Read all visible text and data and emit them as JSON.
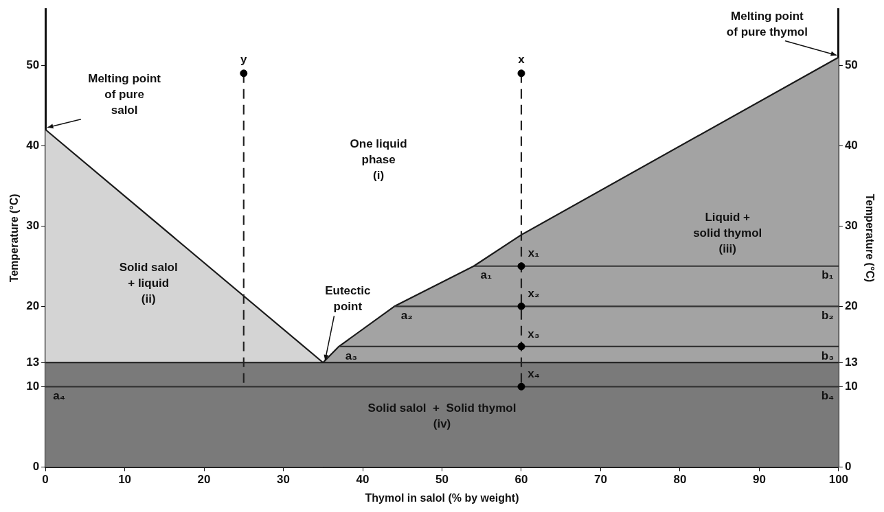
{
  "chart_data": {
    "type": "line",
    "xlabel": "Thymol in salol (% by weight)",
    "ylabel": "Temperature (°C)",
    "y2label": "Temperature (°C)",
    "xlim": [
      0,
      100
    ],
    "xticks": [
      0,
      10,
      20,
      30,
      40,
      50,
      60,
      70,
      80,
      90,
      100
    ],
    "ylim": [
      0,
      57
    ],
    "yticks": [
      0,
      10,
      13,
      20,
      30,
      40,
      50
    ],
    "y2lim": [
      0,
      57
    ],
    "y2ticks": [
      0,
      10,
      13,
      20,
      30,
      40,
      50
    ],
    "grid": false,
    "legend": false,
    "series": [
      {
        "type": "scatter",
        "color": "#000000",
        "marker": "circle",
        "x": [
          25,
          60,
          60,
          60,
          60,
          60
        ],
        "values": [
          49,
          49,
          25,
          20,
          15,
          10
        ]
      },
      {
        "color": "#222222",
        "line_style": "dashed",
        "x": [
          25,
          25
        ],
        "values": [
          49,
          10
        ]
      },
      {
        "color": "#222222",
        "line_style": "dashed",
        "x": [
          60,
          60
        ],
        "values": [
          49,
          10
        ]
      },
      {
        "color": "#333333",
        "x": [
          0,
          100
        ],
        "values": [
          10,
          10
        ]
      },
      {
        "color": "#333333",
        "x": [
          37,
          100
        ],
        "values": [
          15,
          15
        ]
      },
      {
        "color": "#333333",
        "x": [
          44,
          100
        ],
        "values": [
          20,
          20
        ]
      },
      {
        "color": "#333333",
        "x": [
          54,
          100
        ],
        "values": [
          25,
          25
        ]
      },
      {
        "type": "area",
        "color": "#7a7a7a",
        "x": [
          0,
          100
        ],
        "values": [
          13,
          13
        ]
      },
      {
        "type": "area",
        "color": "#a3a3a3",
        "x": [
          35,
          37,
          44,
          54,
          60,
          100
        ],
        "values": [
          13,
          15,
          20,
          25,
          28.9,
          51
        ]
      },
      {
        "type": "area",
        "color": "#d4d4d4",
        "x": [
          0,
          35
        ],
        "values": [
          42,
          13
        ]
      }
    ],
    "annotations": [
      {
        "text": "Melting point\nof pure\nsalol",
        "x": 0,
        "y": 42
      },
      {
        "text": "Melting point\nof pure thymol",
        "x": 100,
        "y": 51
      },
      {
        "text": "Eutectic\npoint",
        "x": 35,
        "y": 13
      },
      {
        "text": "y",
        "x": 25,
        "y": 49
      },
      {
        "text": "x",
        "x": 60,
        "y": 49
      },
      {
        "text": "x₁",
        "x": 60,
        "y": 25
      },
      {
        "text": "x₂",
        "x": 60,
        "y": 20
      },
      {
        "text": "x₃",
        "x": 60,
        "y": 15
      },
      {
        "text": "x₄",
        "x": 60,
        "y": 10
      },
      {
        "text": "a₁",
        "x": 54,
        "y": 25
      },
      {
        "text": "a₂",
        "x": 44,
        "y": 20
      },
      {
        "text": "a₃",
        "x": 37,
        "y": 15
      },
      {
        "text": "a₄",
        "x": 0,
        "y": 10
      },
      {
        "text": "b₁",
        "x": 100,
        "y": 25
      },
      {
        "text": "b₂",
        "x": 100,
        "y": 20
      },
      {
        "text": "b₃",
        "x": 100,
        "y": 15
      },
      {
        "text": "b₄",
        "x": 100,
        "y": 10
      },
      "One liquid\nphase\n(i)",
      "Solid salol\n+ liquid\n(ii)",
      "Liquid +\nsolid thymol\n(iii)",
      "Solid salol  +  Solid thymol\n(iv)"
    ]
  }
}
